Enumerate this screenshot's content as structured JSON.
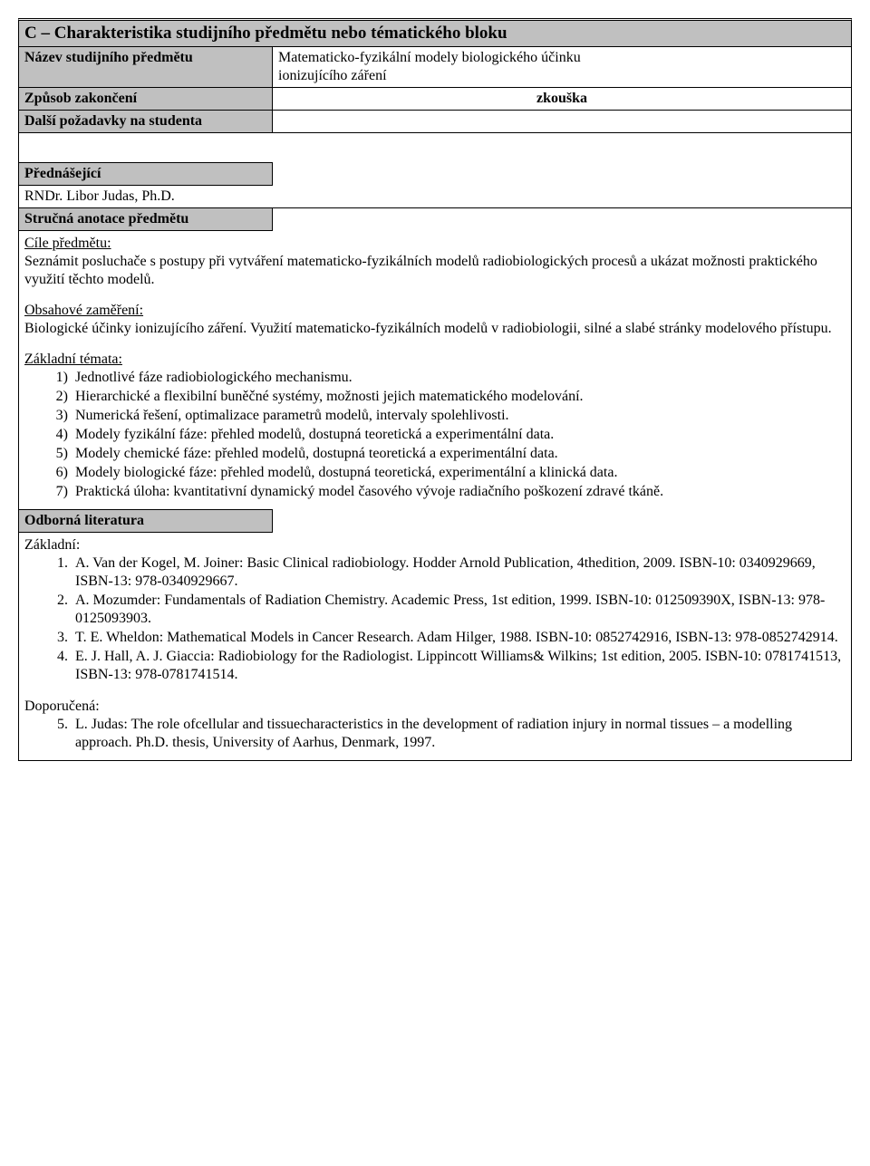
{
  "header_title": "C – Charakteristika studijního předmětu nebo tématického bloku",
  "fields": {
    "course_name_label": "Název studijního předmětu",
    "course_name_value_l1": "Matematicko-fyzikální modely biologického účinku",
    "course_name_value_l2": "ionizujícího záření",
    "completion_label": "Způsob zakončení",
    "completion_value": "zkouška",
    "other_req_label": "Další požadavky na studenta",
    "lecturer_label": "Přednášející",
    "lecturer_value": "RNDr. Libor Judas, Ph.D.",
    "annotation_label": "Stručná anotace předmětu",
    "literature_label": "Odborná literatura"
  },
  "annotation": {
    "aims_heading": "Cíle předmětu:",
    "aims_text": "Seznámit posluchače s postupy při vytváření matematicko-fyzikálních modelů radiobiologických procesů a ukázat možnosti praktického využití těchto modelů.",
    "content_heading": "Obsahové zaměření:",
    "content_text": "Biologické účinky ionizujícího záření. Využití matematicko-fyzikálních modelů v radiobiologii, silné a slabé stránky modelového přístupu.",
    "topics_heading": "Základní témata:",
    "topics": [
      "Jednotlivé fáze radiobiologického mechanismu.",
      "Hierarchické a flexibilní buněčné systémy, možnosti jejich matematického modelování.",
      "Numerická řešení, optimalizace parametrů modelů, intervaly spolehlivosti.",
      "Modely fyzikální fáze: přehled modelů, dostupná teoretická a experimentální data.",
      "Modely chemické fáze: přehled modelů, dostupná teoretická a experimentální data.",
      "Modely biologické fáze: přehled modelů, dostupná teoretická, experimentální a klinická data.",
      "Praktická úloha: kvantitativní dynamický model časového vývoje radiačního poškození zdravé tkáně."
    ]
  },
  "literature": {
    "basic_heading": "Základní:",
    "basic": [
      "A. Van der Kogel, M. Joiner: Basic Clinical radiobiology. Hodder Arnold Publication, 4thedition, 2009. ISBN-10: 0340929669, ISBN-13: 978-0340929667.",
      "A. Mozumder: Fundamentals of Radiation Chemistry. Academic Press, 1st edition, 1999. ISBN-10: 012509390X, ISBN-13: 978-0125093903.",
      "T. E. Wheldon: Mathematical Models in Cancer Research. Adam Hilger, 1988. ISBN-10: 0852742916, ISBN-13: 978-0852742914.",
      "E. J. Hall, A. J. Giaccia: Radiobiology for the Radiologist. Lippincott Williams& Wilkins; 1st edition, 2005. ISBN-10: 0781741513, ISBN-13: 978-0781741514."
    ],
    "recommended_heading": "Doporučená:",
    "recommended_start": 5,
    "recommended": [
      "L. Judas: The role ofcellular and tissuecharacteristics in the development of radiation injury in normal tissues – a modelling approach. Ph.D. thesis, University of Aarhus, Denmark, 1997."
    ]
  }
}
